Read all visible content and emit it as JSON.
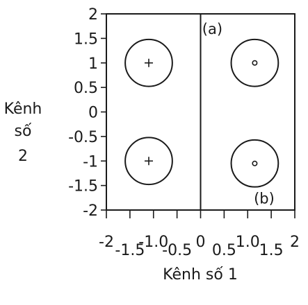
{
  "chart_data": {
    "type": "scatter",
    "title": "",
    "xlabel": "Kênh số 1",
    "ylabel": [
      "Kênh",
      "số",
      "2"
    ],
    "xlim": [
      -2,
      2
    ],
    "ylim": [
      -2,
      2
    ],
    "x_ticks": [
      -2,
      -1.5,
      -1.0,
      -0.5,
      0,
      0.5,
      1.0,
      1.5,
      2
    ],
    "x_tick_labels": [
      "-2",
      "-1.5",
      "-1.0",
      "-0.5",
      "0",
      "0.5",
      "1.0",
      "1.5",
      "2"
    ],
    "y_ticks": [
      2,
      1.5,
      1,
      0.5,
      0,
      -0.5,
      -1,
      -1.5,
      -2
    ],
    "y_tick_labels": [
      "2",
      "1.5",
      "1",
      "0.5",
      "0",
      "-0.5",
      "-1",
      "-1.5",
      "-2"
    ],
    "grid": false,
    "divider_x": 0,
    "clusters": [
      {
        "x": -1.1,
        "y": 1.0,
        "radius": 0.5,
        "marker": "plus"
      },
      {
        "x": -1.1,
        "y": -1.0,
        "radius": 0.5,
        "marker": "plus"
      },
      {
        "x": 1.15,
        "y": 1.0,
        "radius": 0.5,
        "marker": "circle"
      },
      {
        "x": 1.15,
        "y": -1.05,
        "radius": 0.5,
        "marker": "circle"
      }
    ],
    "annotations": [
      {
        "text": "(a)",
        "x": 0.25,
        "y": 1.7
      },
      {
        "text": "(b)",
        "x": 1.35,
        "y": -1.75
      }
    ]
  }
}
